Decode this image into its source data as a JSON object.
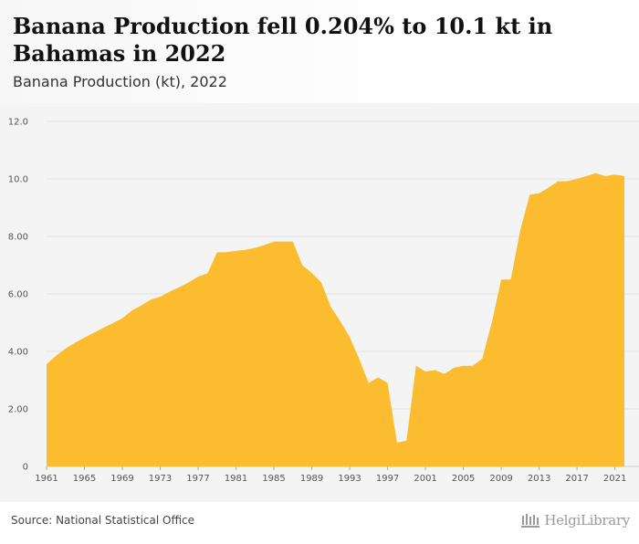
{
  "title": "Banana Production fell 0.204% to 10.1 kt in Bahamas in 2022",
  "subtitle": "Banana Production (kt), 2022",
  "source": "Source: National Statistical Office",
  "logo_text": "HelgiLibrary",
  "colors": {
    "area": "#fbbd2f",
    "grid": "#e2e2e2",
    "plot_bg": "#f4f4f4"
  },
  "chart_data": {
    "type": "area",
    "x": [
      1961,
      1962,
      1963,
      1964,
      1965,
      1966,
      1967,
      1968,
      1969,
      1970,
      1971,
      1972,
      1973,
      1974,
      1975,
      1976,
      1977,
      1978,
      1979,
      1980,
      1981,
      1982,
      1983,
      1984,
      1985,
      1986,
      1987,
      1988,
      1989,
      1990,
      1991,
      1992,
      1993,
      1994,
      1995,
      1996,
      1997,
      1998,
      1999,
      2000,
      2001,
      2002,
      2003,
      2004,
      2005,
      2006,
      2007,
      2008,
      2009,
      2010,
      2011,
      2012,
      2013,
      2014,
      2015,
      2016,
      2017,
      2018,
      2019,
      2020,
      2021,
      2022
    ],
    "values": [
      3.55,
      3.85,
      4.1,
      4.3,
      4.48,
      4.65,
      4.82,
      4.98,
      5.15,
      5.42,
      5.6,
      5.8,
      5.9,
      6.08,
      6.23,
      6.4,
      6.6,
      6.72,
      7.45,
      7.45,
      7.5,
      7.53,
      7.6,
      7.7,
      7.82,
      7.82,
      7.82,
      7.0,
      6.73,
      6.4,
      5.55,
      5.05,
      4.5,
      3.75,
      2.9,
      3.1,
      2.9,
      0.82,
      0.9,
      3.5,
      3.3,
      3.35,
      3.22,
      3.43,
      3.5,
      3.5,
      3.75,
      5.0,
      6.5,
      6.5,
      8.2,
      9.45,
      9.5,
      9.7,
      9.92,
      9.92,
      10.0,
      10.1,
      10.2,
      10.1,
      10.15,
      10.1
    ],
    "y_ticks": [
      "0",
      "2.00",
      "4.00",
      "6.00",
      "8.00",
      "10.0",
      "12.0"
    ],
    "y_tick_values": [
      0,
      2,
      4,
      6,
      8,
      10,
      12
    ],
    "x_ticks": [
      "1961",
      "1965",
      "1969",
      "1973",
      "1977",
      "1981",
      "1985",
      "1989",
      "1993",
      "1997",
      "2001",
      "2005",
      "2009",
      "2013",
      "2017",
      "2021"
    ],
    "x_tick_values": [
      1961,
      1965,
      1969,
      1973,
      1977,
      1981,
      1985,
      1989,
      1993,
      1997,
      2001,
      2005,
      2009,
      2013,
      2017,
      2021
    ],
    "xlim": [
      1961,
      2022
    ],
    "ylim": [
      0,
      12
    ],
    "grid": true,
    "legend": "none"
  }
}
